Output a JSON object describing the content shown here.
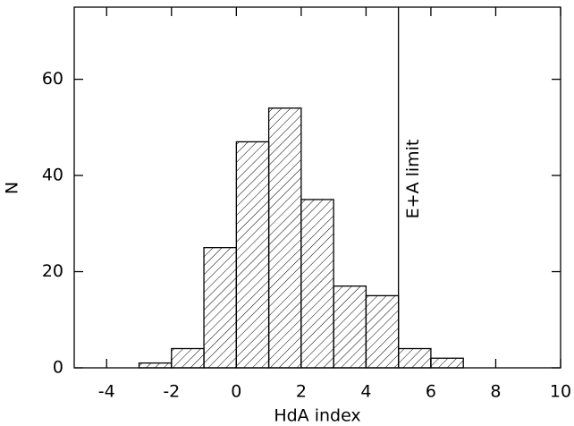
{
  "chart_data": {
    "type": "histogram",
    "x_label": "HdA index",
    "y_label": "N",
    "bins": [
      -4,
      -3,
      -2,
      -1,
      0,
      1,
      2,
      3,
      4,
      5,
      6,
      7,
      8
    ],
    "values": [
      0,
      1,
      4,
      25,
      47,
      54,
      35,
      17,
      15,
      4,
      2,
      0
    ],
    "xlim": [
      -5,
      10
    ],
    "ylim": [
      0,
      75
    ],
    "xticks": [
      -4,
      -2,
      0,
      2,
      4,
      6,
      8,
      10
    ],
    "yticks": [
      0,
      20,
      40,
      60
    ],
    "annotation": {
      "x": 5,
      "text": "E+A limit"
    }
  }
}
